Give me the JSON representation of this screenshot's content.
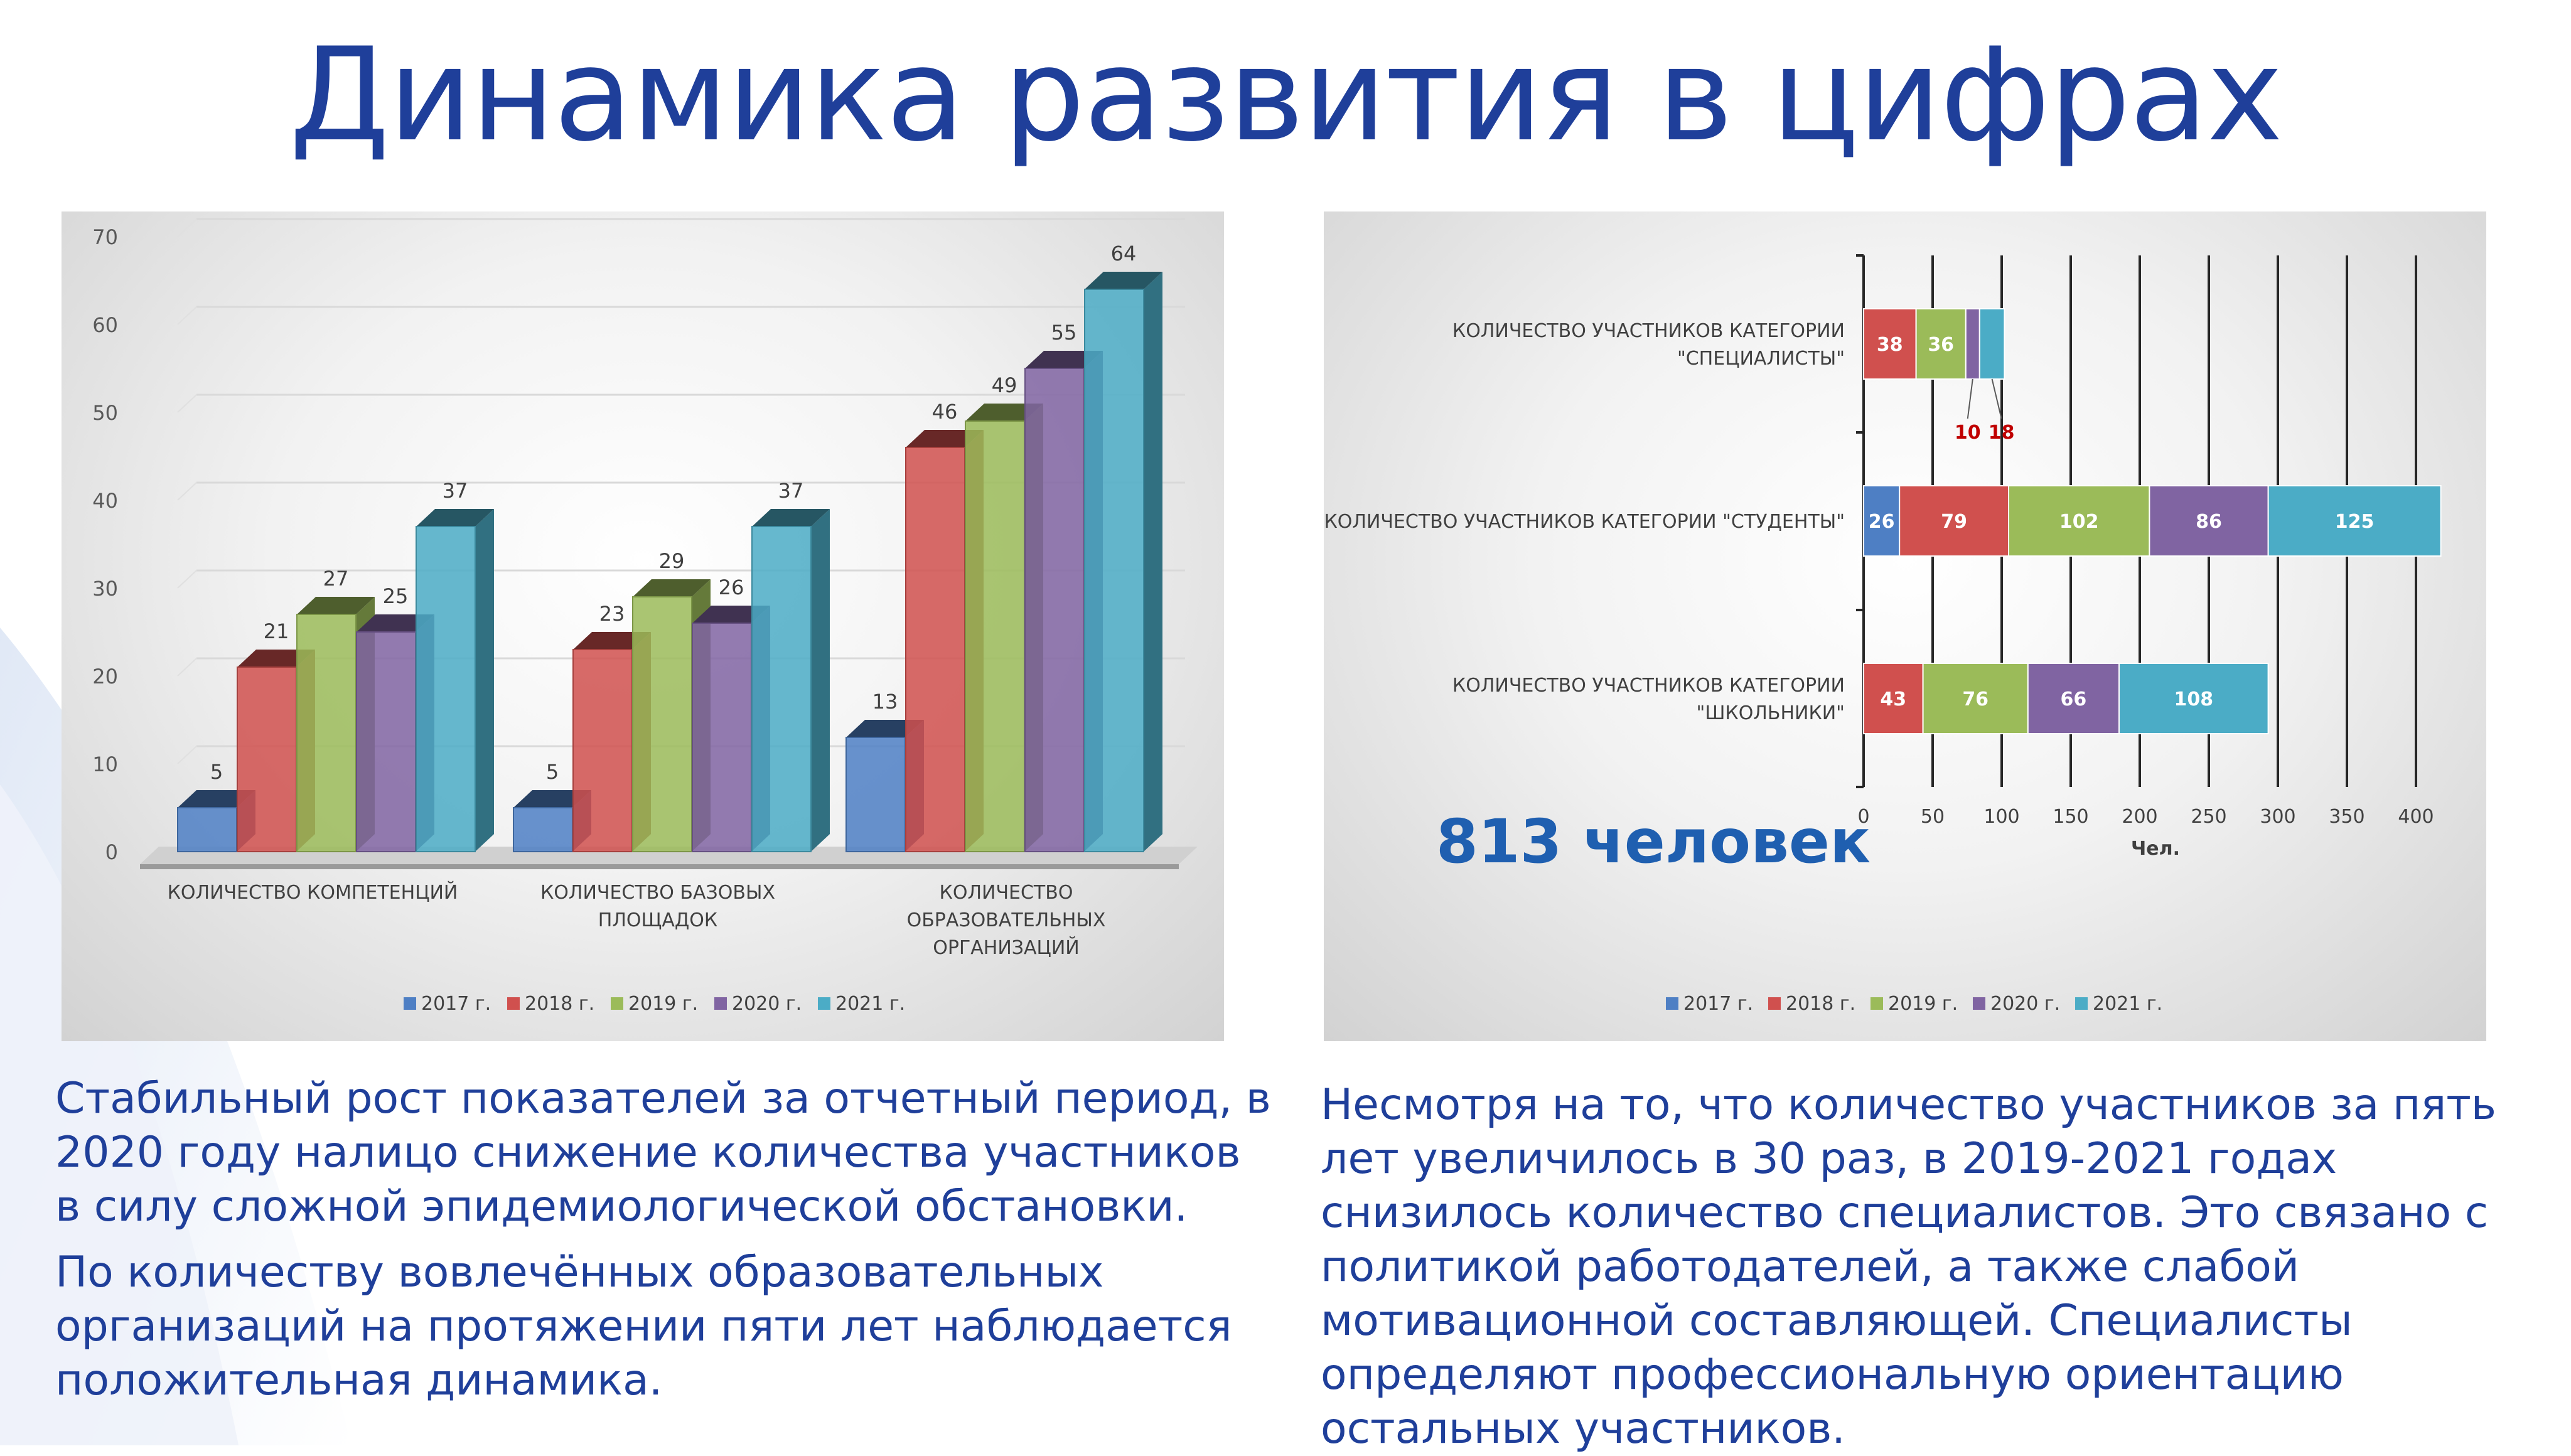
{
  "title": "Динамика развития в цифрах",
  "total_label": "813 человек",
  "paragraphs": {
    "left_1": "Стабильный рост показателей за отчетный период, в 2020 году налицо снижение количества участников в силу сложной эпидемиологической обстановки.",
    "left_2": "По количеству вовлечённых образовательных организаций на протяжении пяти лет наблюдается положительная динамика.",
    "right": "Несмотря на то, что количество участников за пять лет увеличилось в 30 раз, в 2019-2021 годах снизилось количество специалистов. Это связано с политикой работодателей, а также слабой мотивационной составляющей. Специалисты определяют профессиональную ориентацию остальных участников."
  },
  "colors": {
    "2017 г.": "#4e7fc4",
    "2018 г.": "#d0504e",
    "2019 г.": "#9bbb59",
    "2020 г.": "#8064a2",
    "2021 г.": "#4bacc6",
    "title": "#1f3f9a",
    "total": "#1f5fb0",
    "callout": "#c00000"
  },
  "chart_data": [
    {
      "type": "bar",
      "orientation": "vertical",
      "style": "3d-clustered",
      "categories": [
        [
          "КОЛИЧЕСТВО КОМПЕТЕНЦИЙ"
        ],
        [
          "КОЛИЧЕСТВО БАЗОВЫХ",
          "ПЛОЩАДОК"
        ],
        [
          "КОЛИЧЕСТВО",
          "ОБРАЗОВАТЕЛЬНЫХ",
          "ОРГАНИЗАЦИЙ"
        ]
      ],
      "series": [
        {
          "name": "2017 г.",
          "values": [
            5,
            5,
            13
          ]
        },
        {
          "name": "2018 г.",
          "values": [
            21,
            23,
            46
          ]
        },
        {
          "name": "2019 г.",
          "values": [
            27,
            29,
            49
          ]
        },
        {
          "name": "2020 г.",
          "values": [
            25,
            26,
            55
          ]
        },
        {
          "name": "2021 г.",
          "values": [
            37,
            37,
            64
          ]
        }
      ],
      "ylim": [
        0,
        70
      ],
      "yticks": [
        0,
        10,
        20,
        30,
        40,
        50,
        60,
        70
      ],
      "grid": true,
      "legend": "bottom",
      "data_labels": true
    },
    {
      "type": "bar",
      "orientation": "horizontal",
      "style": "stacked",
      "categories": [
        [
          "КОЛИЧЕСТВО УЧАСТНИКОВ КАТЕГОРИИ",
          "\"СПЕЦИАЛИСТЫ\""
        ],
        [
          "КОЛИЧЕСТВО УЧАСТНИКОВ КАТЕГОРИИ \"СТУДЕНТЫ\""
        ],
        [
          "КОЛИЧЕСТВО УЧАСТНИКОВ КАТЕГОРИИ",
          "\"ШКОЛЬНИКИ\""
        ]
      ],
      "series": [
        {
          "name": "2017 г.",
          "values": [
            0,
            26,
            0
          ]
        },
        {
          "name": "2018 г.",
          "values": [
            38,
            79,
            43
          ]
        },
        {
          "name": "2019 г.",
          "values": [
            36,
            102,
            76
          ]
        },
        {
          "name": "2020 г.",
          "values": [
            10,
            86,
            66
          ]
        },
        {
          "name": "2021 г.",
          "values": [
            18,
            125,
            108
          ]
        }
      ],
      "callout_labels": [
        {
          "category": 0,
          "series": "2020 г.",
          "text": "10"
        },
        {
          "category": 0,
          "series": "2021 г.",
          "text": "18"
        }
      ],
      "xlabel": "Чел.",
      "xlim": [
        0,
        420
      ],
      "xticks": [
        0,
        50,
        100,
        150,
        200,
        250,
        300,
        350,
        400
      ],
      "grid": true,
      "legend": "bottom",
      "data_labels": true
    }
  ]
}
